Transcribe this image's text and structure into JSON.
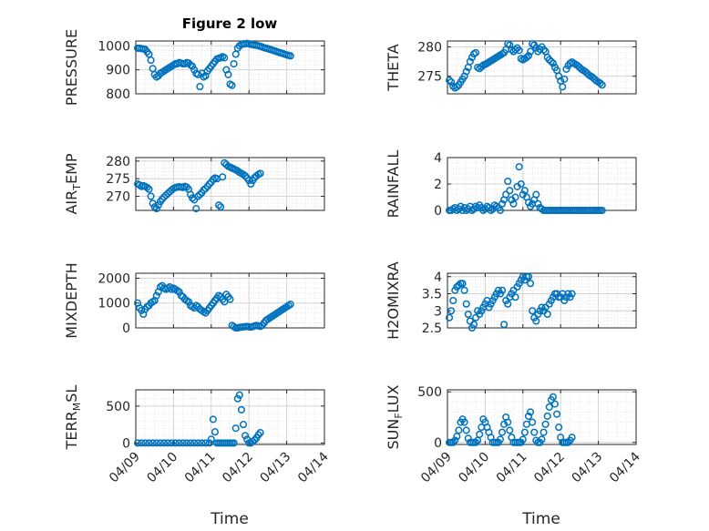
{
  "figure": {
    "title": "Figure 2 low",
    "xlabel_left": "Time",
    "xlabel_right": "Time",
    "x_tick_labels": [
      "04/09",
      "04/10",
      "04/11",
      "04/12",
      "04/13",
      "04/14"
    ]
  },
  "colors": {
    "marker": "#0072BD",
    "axes": "#262626",
    "grid_major": "#d4d4d4",
    "grid_minor": "#e6e6e6",
    "panel_bg": "#ffffff"
  },
  "chart_data": [
    {
      "type": "scatter",
      "ylabel": "PRESSURE",
      "ylim": [
        800,
        1020
      ],
      "yticks": [
        800,
        900,
        1000
      ],
      "xlim": [
        "04/09",
        "04/14"
      ],
      "grid": true,
      "marker": "open-circle",
      "x": [
        0.05,
        0.1,
        0.15,
        0.2,
        0.25,
        0.3,
        0.35,
        0.4,
        0.45,
        0.5,
        0.55,
        0.6,
        0.65,
        0.7,
        0.75,
        0.8,
        0.85,
        0.9,
        0.95,
        1.0,
        1.05,
        1.1,
        1.15,
        1.2,
        1.25,
        1.3,
        1.35,
        1.4,
        1.45,
        1.5,
        1.55,
        1.6,
        1.65,
        1.7,
        1.75,
        1.8,
        1.85,
        1.9,
        1.95,
        2.0,
        2.05,
        2.1,
        2.15,
        2.2,
        2.25,
        2.3,
        2.35,
        2.4,
        2.45,
        2.5,
        2.55,
        2.6,
        2.65,
        2.7,
        2.75,
        2.8,
        2.85,
        2.9,
        2.95,
        3.0,
        3.05,
        3.1,
        3.15,
        3.2,
        3.25,
        3.3,
        3.35,
        3.4,
        3.45,
        3.5,
        3.55,
        3.6,
        3.65,
        3.7,
        3.75,
        3.8,
        3.85,
        3.9,
        3.95,
        4.0,
        4.05,
        4.1
      ],
      "y": [
        990,
        990,
        988,
        987,
        985,
        975,
        965,
        940,
        905,
        880,
        870,
        875,
        885,
        890,
        895,
        900,
        905,
        910,
        915,
        920,
        925,
        925,
        930,
        928,
        925,
        925,
        930,
        928,
        920,
        915,
        900,
        885,
        880,
        830,
        885,
        870,
        875,
        895,
        905,
        915,
        925,
        935,
        945,
        948,
        950,
        955,
        950,
        900,
        880,
        840,
        835,
        925,
        965,
        990,
        1000,
        1005,
        1008,
        1008,
        1010,
        1008,
        1006,
        1005,
        1003,
        1002,
        1000,
        998,
        995,
        992,
        990,
        988,
        985,
        983,
        980,
        978,
        975,
        972,
        970,
        968,
        965,
        962,
        960,
        958
      ]
    },
    {
      "type": "scatter",
      "ylabel": "THETA",
      "ylim": [
        272,
        281
      ],
      "yticks": [
        275,
        280
      ],
      "xlim": [
        "04/09",
        "04/14"
      ],
      "grid": true,
      "marker": "open-circle",
      "x": [
        0.05,
        0.1,
        0.15,
        0.2,
        0.25,
        0.3,
        0.35,
        0.4,
        0.45,
        0.5,
        0.55,
        0.6,
        0.65,
        0.7,
        0.75,
        0.8,
        0.85,
        0.9,
        0.95,
        1.0,
        1.05,
        1.1,
        1.15,
        1.2,
        1.25,
        1.3,
        1.35,
        1.4,
        1.45,
        1.5,
        1.55,
        1.6,
        1.65,
        1.7,
        1.75,
        1.8,
        1.85,
        1.9,
        1.95,
        2.0,
        2.05,
        2.1,
        2.15,
        2.2,
        2.25,
        2.3,
        2.35,
        2.4,
        2.45,
        2.5,
        2.55,
        2.6,
        2.65,
        2.7,
        2.75,
        2.8,
        2.85,
        2.9,
        2.95,
        3.0,
        3.05,
        3.1,
        3.15,
        3.2,
        3.25,
        3.3,
        3.35,
        3.4,
        3.45,
        3.5,
        3.55,
        3.6,
        3.65,
        3.7,
        3.75,
        3.8,
        3.85,
        3.9,
        3.95,
        4.0,
        4.05,
        4.1
      ],
      "y": [
        274.3,
        274,
        273.3,
        273.0,
        273.2,
        273.5,
        274,
        274.5,
        275,
        275.8,
        276.5,
        277.5,
        278.2,
        278.8,
        279,
        276.5,
        276.3,
        276.6,
        276.9,
        277,
        277.2,
        277.4,
        277.6,
        277.8,
        278,
        278.2,
        278.4,
        278.6,
        278.8,
        279,
        279.5,
        280.5,
        280.3,
        279.5,
        279.2,
        279.5,
        279.8,
        279.4,
        278,
        277.8,
        278,
        278.2,
        278.5,
        279.2,
        280.5,
        280.3,
        279.8,
        279.2,
        279.6,
        280,
        279.5,
        279.2,
        278.2,
        277.8,
        277.5,
        277.2,
        276.5,
        276,
        275,
        274.2,
        273.2,
        274.5,
        276.2,
        276.8,
        277.2,
        277.4,
        277.2,
        277,
        276.8,
        276.5,
        276.2,
        276,
        275.8,
        275.5,
        275.2,
        275,
        274.8,
        274.5,
        274.2,
        274,
        273.8,
        273.5
      ]
    },
    {
      "type": "scatter",
      "ylabel": "AIR_TEMP",
      "ylim": [
        266,
        281
      ],
      "yticks": [
        270,
        275,
        280
      ],
      "xlim": [
        "04/09",
        "04/14"
      ],
      "grid": true,
      "marker": "open-circle",
      "x": [
        0.05,
        0.1,
        0.15,
        0.2,
        0.25,
        0.3,
        0.35,
        0.4,
        0.45,
        0.5,
        0.55,
        0.6,
        0.65,
        0.7,
        0.75,
        0.8,
        0.85,
        0.9,
        0.95,
        1.0,
        1.05,
        1.1,
        1.15,
        1.2,
        1.25,
        1.3,
        1.35,
        1.4,
        1.45,
        1.5,
        1.55,
        1.6,
        1.65,
        1.7,
        1.75,
        1.8,
        1.85,
        1.9,
        1.95,
        2.0,
        2.05,
        2.1,
        2.15,
        2.2,
        2.25,
        2.3,
        2.35,
        2.4,
        2.45,
        2.5,
        2.55,
        2.6,
        2.65,
        2.7,
        2.75,
        2.8,
        2.85,
        2.9,
        2.95,
        3.0,
        3.05,
        3.1,
        3.15,
        3.2,
        3.25,
        3.3
      ],
      "y": [
        273.5,
        273.2,
        272.8,
        273,
        272.8,
        272.5,
        272,
        270,
        268,
        267,
        266.5,
        267.5,
        268.5,
        269.2,
        269.8,
        270.3,
        270.8,
        271.3,
        271.8,
        272.2,
        272.5,
        272.6,
        272.7,
        272.6,
        272.5,
        272.8,
        272.6,
        272,
        270.5,
        269.5,
        269,
        266.5,
        270,
        270.5,
        271,
        271.8,
        272.2,
        272.8,
        273.5,
        274,
        274.8,
        275.2,
        275,
        267.5,
        267,
        275.5,
        279.5,
        279,
        278.5,
        278.3,
        278,
        277.8,
        277.5,
        277.2,
        276.8,
        276.5,
        276.2,
        275.8,
        275.2,
        274.5,
        273.5,
        274.5,
        275.3,
        275.8,
        276.2,
        276.5
      ]
    },
    {
      "type": "scatter",
      "ylabel": "RAINFALL",
      "ylim": [
        0,
        4
      ],
      "yticks": [
        0,
        2,
        4
      ],
      "xlim": [
        "04/09",
        "04/14"
      ],
      "grid": true,
      "marker": "open-circle",
      "x": [
        0.05,
        0.1,
        0.15,
        0.2,
        0.25,
        0.3,
        0.35,
        0.4,
        0.45,
        0.5,
        0.55,
        0.6,
        0.65,
        0.7,
        0.75,
        0.8,
        0.85,
        0.9,
        0.95,
        1.0,
        1.05,
        1.1,
        1.15,
        1.2,
        1.25,
        1.3,
        1.35,
        1.4,
        1.45,
        1.5,
        1.55,
        1.6,
        1.65,
        1.7,
        1.75,
        1.8,
        1.85,
        1.9,
        1.95,
        2.0,
        2.05,
        2.1,
        2.15,
        2.2,
        2.25,
        2.3,
        2.35,
        2.4,
        2.45,
        2.5,
        2.55,
        2.6,
        2.65,
        2.7,
        2.75,
        2.8,
        2.85,
        2.9,
        2.95,
        3.0,
        3.05,
        3.1,
        3.15,
        3.2,
        3.25,
        3.3,
        3.35,
        3.4,
        3.45,
        3.5,
        3.55,
        3.6,
        3.65,
        3.7,
        3.75,
        3.8,
        3.85,
        3.9,
        3.95,
        4.0,
        4.05,
        4.1
      ],
      "y": [
        0,
        0,
        0.1,
        0.2,
        0,
        0.1,
        0.3,
        0,
        0.2,
        0,
        0.1,
        0.3,
        0,
        0.1,
        0.3,
        0.2,
        0.4,
        0.2,
        0,
        0.1,
        0.3,
        0.2,
        0,
        0.1,
        0.4,
        0.3,
        0.2,
        0,
        0.5,
        0.8,
        1.2,
        2.2,
        1.5,
        0.8,
        0.5,
        1.0,
        1.8,
        3.3,
        2.0,
        1.2,
        1.5,
        1.0,
        0.6,
        0.3,
        0.5,
        0.8,
        1.2,
        0.5,
        0.2,
        0.1,
        0,
        0,
        0,
        0,
        0,
        0,
        0,
        0,
        0,
        0,
        0,
        0,
        0,
        0,
        0,
        0,
        0,
        0,
        0,
        0,
        0,
        0,
        0,
        0,
        0,
        0,
        0,
        0,
        0,
        0,
        0,
        0
      ]
    },
    {
      "type": "scatter",
      "ylabel": "MIXDEPTH",
      "ylim": [
        0,
        2200
      ],
      "yticks": [
        0,
        1000,
        2000
      ],
      "xlim": [
        "04/09",
        "04/14"
      ],
      "grid": true,
      "marker": "open-circle",
      "x": [
        0.05,
        0.1,
        0.15,
        0.2,
        0.25,
        0.3,
        0.35,
        0.4,
        0.45,
        0.5,
        0.55,
        0.6,
        0.65,
        0.7,
        0.75,
        0.8,
        0.85,
        0.9,
        0.95,
        1.0,
        1.05,
        1.1,
        1.15,
        1.2,
        1.25,
        1.3,
        1.35,
        1.4,
        1.45,
        1.5,
        1.55,
        1.6,
        1.65,
        1.7,
        1.75,
        1.8,
        1.85,
        1.9,
        1.95,
        2.0,
        2.05,
        2.1,
        2.15,
        2.2,
        2.25,
        2.3,
        2.35,
        2.4,
        2.45,
        2.5,
        2.55,
        2.6,
        2.65,
        2.7,
        2.75,
        2.8,
        2.85,
        2.9,
        2.95,
        3.0,
        3.05,
        3.1,
        3.15,
        3.2,
        3.25,
        3.3,
        3.35,
        3.4,
        3.45,
        3.5,
        3.55,
        3.6,
        3.65,
        3.7,
        3.75,
        3.8,
        3.85,
        3.9,
        3.95,
        4.0,
        4.05,
        4.1
      ],
      "y": [
        1000,
        800,
        700,
        550,
        750,
        850,
        900,
        1000,
        1050,
        1100,
        1300,
        1450,
        1650,
        1700,
        1600,
        1550,
        1600,
        1650,
        1550,
        1600,
        1550,
        1500,
        1450,
        1300,
        1250,
        1150,
        1100,
        1050,
        900,
        850,
        800,
        900,
        850,
        750,
        700,
        650,
        600,
        700,
        800,
        900,
        1000,
        1100,
        1200,
        1300,
        1250,
        1150,
        1050,
        1350,
        1250,
        1150,
        100,
        50,
        0,
        0,
        20,
        30,
        40,
        50,
        60,
        40,
        30,
        50,
        80,
        100,
        80,
        60,
        100,
        200,
        300,
        350,
        400,
        450,
        500,
        550,
        600,
        650,
        700,
        750,
        800,
        850,
        900,
        950
      ]
    },
    {
      "type": "scatter",
      "ylabel": "H2OMIXRA",
      "ylim": [
        2.5,
        4.1
      ],
      "yticks": [
        2.5,
        3,
        3.5,
        4
      ],
      "xlim": [
        "04/09",
        "04/14"
      ],
      "grid": true,
      "marker": "open-circle",
      "x": [
        0.05,
        0.1,
        0.15,
        0.2,
        0.25,
        0.3,
        0.35,
        0.4,
        0.45,
        0.5,
        0.55,
        0.6,
        0.65,
        0.7,
        0.75,
        0.8,
        0.85,
        0.9,
        0.95,
        1.0,
        1.05,
        1.1,
        1.15,
        1.2,
        1.25,
        1.3,
        1.35,
        1.4,
        1.45,
        1.5,
        1.55,
        1.6,
        1.65,
        1.7,
        1.75,
        1.8,
        1.85,
        1.9,
        1.95,
        2.0,
        2.05,
        2.1,
        2.15,
        2.2,
        2.25,
        2.3,
        2.35,
        2.4,
        2.45,
        2.5,
        2.55,
        2.6,
        2.65,
        2.7,
        2.75,
        2.8,
        2.85,
        2.9,
        2.95,
        3.0,
        3.05,
        3.1,
        3.15,
        3.2,
        3.25,
        3.3
      ],
      "y": [
        2.8,
        3.0,
        3.3,
        3.6,
        3.7,
        3.75,
        3.8,
        3.8,
        3.6,
        3.2,
        2.9,
        2.7,
        2.5,
        2.6,
        2.8,
        3.0,
        2.9,
        3.0,
        3.1,
        3.2,
        3.3,
        3.1,
        3.2,
        3.3,
        3.4,
        3.5,
        3.6,
        3.5,
        3.6,
        2.6,
        3.3,
        3.2,
        3.4,
        3.5,
        3.6,
        3.4,
        3.7,
        3.8,
        3.9,
        4.0,
        3.9,
        4.0,
        4.0,
        3.8,
        3.0,
        2.8,
        2.7,
        2.9,
        3.0,
        3.1,
        3.0,
        3.1,
        2.9,
        3.2,
        3.3,
        3.4,
        3.5,
        3.5,
        3.4,
        3.4,
        3.5,
        3.3,
        3.4,
        3.5,
        3.4,
        3.5
      ]
    },
    {
      "type": "scatter",
      "ylabel": "TERR_MSL",
      "ylim": [
        -20,
        720
      ],
      "yticks": [
        0,
        500
      ],
      "xlim": [
        "04/09",
        "04/14"
      ],
      "grid": true,
      "marker": "open-circle",
      "x": [
        0.05,
        0.15,
        0.25,
        0.35,
        0.45,
        0.55,
        0.65,
        0.75,
        0.85,
        0.95,
        1.05,
        1.15,
        1.25,
        1.35,
        1.45,
        1.55,
        1.65,
        1.75,
        1.85,
        1.95,
        2.0,
        2.05,
        2.1,
        2.15,
        2.2,
        2.25,
        2.3,
        2.35,
        2.4,
        2.45,
        2.5,
        2.55,
        2.6,
        2.65,
        2.7,
        2.75,
        2.8,
        2.85,
        2.9,
        2.95,
        3.0,
        3.05,
        3.1,
        3.15,
        3.2,
        3.25,
        3.3
      ],
      "y": [
        0,
        0,
        0,
        0,
        0,
        0,
        0,
        0,
        0,
        0,
        0,
        0,
        0,
        0,
        0,
        0,
        0,
        0,
        0,
        0,
        50,
        320,
        150,
        0,
        0,
        0,
        0,
        0,
        0,
        0,
        0,
        0,
        0,
        200,
        600,
        650,
        450,
        250,
        100,
        50,
        0,
        0,
        20,
        40,
        70,
        110,
        140
      ]
    },
    {
      "type": "scatter",
      "ylabel": "SUN_FLUX",
      "ylim": [
        -20,
        520
      ],
      "yticks": [
        0,
        500
      ],
      "xlim": [
        "04/09",
        "04/14"
      ],
      "grid": true,
      "marker": "open-circle",
      "x": [
        0.05,
        0.1,
        0.15,
        0.2,
        0.25,
        0.3,
        0.35,
        0.4,
        0.45,
        0.5,
        0.55,
        0.6,
        0.65,
        0.7,
        0.75,
        0.8,
        0.85,
        0.9,
        0.95,
        1.0,
        1.05,
        1.1,
        1.15,
        1.2,
        1.25,
        1.3,
        1.35,
        1.4,
        1.45,
        1.5,
        1.55,
        1.6,
        1.65,
        1.7,
        1.75,
        1.8,
        1.85,
        1.9,
        1.95,
        2.0,
        2.05,
        2.1,
        2.15,
        2.2,
        2.25,
        2.3,
        2.35,
        2.4,
        2.45,
        2.5,
        2.55,
        2.6,
        2.65,
        2.7,
        2.75,
        2.8,
        2.85,
        2.9,
        2.95,
        3.0,
        3.05,
        3.1,
        3.15,
        3.2,
        3.25,
        3.3
      ],
      "y": [
        0,
        0,
        0,
        20,
        60,
        120,
        200,
        230,
        200,
        120,
        40,
        0,
        0,
        0,
        0,
        20,
        80,
        150,
        230,
        200,
        150,
        100,
        50,
        0,
        0,
        0,
        0,
        30,
        100,
        180,
        250,
        200,
        120,
        50,
        0,
        0,
        0,
        0,
        0,
        30,
        100,
        180,
        260,
        300,
        200,
        100,
        20,
        0,
        0,
        30,
        100,
        180,
        260,
        350,
        420,
        450,
        380,
        280,
        150,
        50,
        0,
        0,
        0,
        0,
        20,
        50
      ]
    }
  ]
}
